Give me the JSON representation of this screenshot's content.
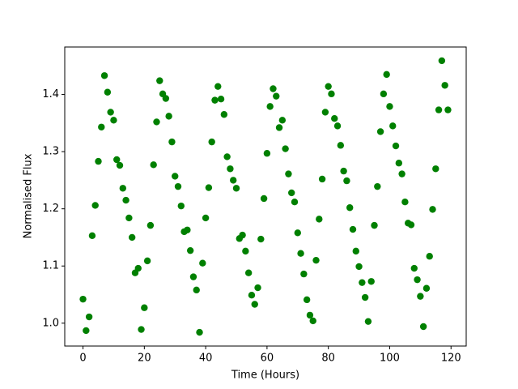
{
  "chart_data": {
    "type": "scatter",
    "x_label": "Time (Hours)",
    "y_label": "Normalised Flux",
    "color": "#008000",
    "grid": false,
    "x": [
      0,
      1,
      2,
      3,
      4,
      5,
      6,
      7,
      8,
      9,
      10,
      11,
      12,
      13,
      14,
      15,
      16,
      17,
      18,
      19,
      20,
      21,
      22,
      23,
      24,
      25,
      26,
      27,
      28,
      29,
      30,
      31,
      32,
      33,
      34,
      35,
      36,
      37,
      38,
      39,
      40,
      41,
      42,
      43,
      44,
      45,
      46,
      47,
      48,
      49,
      50,
      51,
      52,
      53,
      54,
      55,
      56,
      57,
      58,
      59,
      60,
      61,
      62,
      63,
      64,
      65,
      66,
      67,
      68,
      69,
      70,
      71,
      72,
      73,
      74,
      75,
      76,
      77,
      78,
      79,
      80,
      81,
      82,
      83,
      84,
      85,
      86,
      87,
      88,
      89,
      90,
      91,
      92,
      93,
      94,
      95,
      96,
      97,
      98,
      99,
      100,
      101,
      102,
      103,
      104,
      105,
      106,
      107,
      108,
      109,
      110,
      111,
      112,
      113,
      114,
      115,
      116,
      117,
      118,
      119
    ],
    "values": [
      1.042,
      0.987,
      1.011,
      1.153,
      1.206,
      1.283,
      1.343,
      1.433,
      1.404,
      1.369,
      1.355,
      1.286,
      1.276,
      1.236,
      1.215,
      1.184,
      1.15,
      1.088,
      1.096,
      0.989,
      1.027,
      1.109,
      1.171,
      1.277,
      1.352,
      1.424,
      1.401,
      1.393,
      1.362,
      1.317,
      1.257,
      1.239,
      1.205,
      1.16,
      1.163,
      1.127,
      1.081,
      1.058,
      0.984,
      1.105,
      1.184,
      1.237,
      1.317,
      1.39,
      1.414,
      1.392,
      1.365,
      1.291,
      1.27,
      1.25,
      1.236,
      1.148,
      1.154,
      1.126,
      1.088,
      1.049,
      1.033,
      1.062,
      1.147,
      1.218,
      1.297,
      1.379,
      1.41,
      1.397,
      1.342,
      1.355,
      1.305,
      1.261,
      1.228,
      1.212,
      1.158,
      1.122,
      1.086,
      1.041,
      1.014,
      1.004,
      1.11,
      1.182,
      1.252,
      1.369,
      1.414,
      1.401,
      1.358,
      1.345,
      1.311,
      1.266,
      1.249,
      1.202,
      1.164,
      1.126,
      1.099,
      1.071,
      1.045,
      1.003,
      1.073,
      1.171,
      1.239,
      1.335,
      1.401,
      1.435,
      1.379,
      1.345,
      1.31,
      1.28,
      1.261,
      1.212,
      1.175,
      1.172,
      1.096,
      1.076,
      1.047,
      0.994,
      1.061,
      1.117,
      1.199,
      1.27,
      1.373,
      1.459,
      1.416,
      1.373
    ],
    "xlim": [
      -5.95,
      124.95
    ],
    "ylim": [
      0.96,
      1.483
    ],
    "xticks": [
      0,
      20,
      40,
      60,
      80,
      100,
      120
    ],
    "yticks": [
      {
        "value": 1.0,
        "label": "1.0"
      },
      {
        "value": 1.1,
        "label": "1.1"
      },
      {
        "value": 1.2,
        "label": "1.2"
      },
      {
        "value": 1.3,
        "label": "1.3"
      },
      {
        "value": 1.4,
        "label": "1.4"
      }
    ]
  }
}
